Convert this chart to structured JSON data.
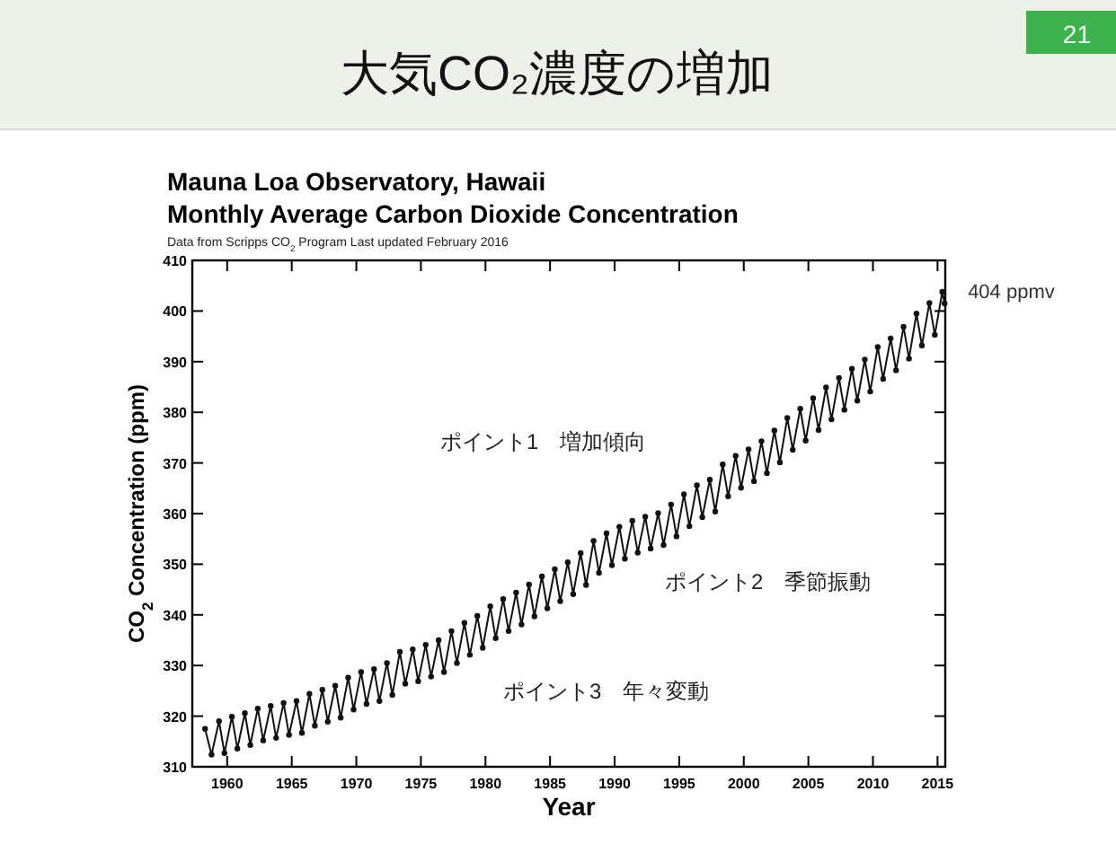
{
  "chart_data": {
    "type": "line",
    "title": "大気CO₂濃度の増加",
    "subtitle": "Mauna Loa Observatory, Hawaii\nMonthly Average Carbon Dioxide Concentration",
    "xlabel": "Year",
    "ylabel": "CO$_{2}$ Concentration (ppm)",
    "xlim": [
      1957.3,
      2015.6
    ],
    "xticks": [
      1960,
      1965,
      1970,
      1975,
      1980,
      1985,
      1990,
      1995,
      2000,
      2005,
      2010,
      2015
    ],
    "ylim": [
      310,
      410
    ],
    "yticks": [
      310,
      320,
      330,
      340,
      350,
      360,
      370,
      380,
      390,
      400,
      410
    ],
    "marker": "circle",
    "line_style": "solid",
    "annotations": [
      "Data from Scripps CO$_{2}$ Program    Last updated February 2016",
      "ポイント1　増加傾向",
      "ポイント2　季節振動",
      "ポイント3　年々変動",
      {
        "text": "404 ppmv",
        "x": 2015.4,
        "y": 404
      },
      "21"
    ],
    "series": [
      {
        "color": "#111111",
        "x": [
          1958.29,
          1958.79,
          1959.37,
          1959.79,
          1960.37,
          1960.79,
          1961.37,
          1961.79,
          1962.37,
          1962.79,
          1963.37,
          1963.79,
          1964.37,
          1964.79,
          1965.37,
          1965.79,
          1966.37,
          1966.79,
          1967.37,
          1967.79,
          1968.37,
          1968.79,
          1969.37,
          1969.79,
          1970.37,
          1970.79,
          1971.37,
          1971.79,
          1972.37,
          1972.79,
          1973.37,
          1973.79,
          1974.37,
          1974.79,
          1975.37,
          1975.79,
          1976.37,
          1976.79,
          1977.37,
          1977.79,
          1978.37,
          1978.79,
          1979.37,
          1979.79,
          1980.37,
          1980.79,
          1981.37,
          1981.79,
          1982.37,
          1982.79,
          1983.37,
          1983.79,
          1984.37,
          1984.79,
          1985.37,
          1985.79,
          1986.37,
          1986.79,
          1987.37,
          1987.79,
          1988.37,
          1988.79,
          1989.37,
          1989.79,
          1990.37,
          1990.79,
          1991.37,
          1991.79,
          1992.37,
          1992.79,
          1993.37,
          1993.79,
          1994.37,
          1994.79,
          1995.37,
          1995.79,
          1996.37,
          1996.79,
          1997.37,
          1997.79,
          1998.37,
          1998.79,
          1999.37,
          1999.79,
          2000.37,
          2000.79,
          2001.37,
          2001.79,
          2002.37,
          2002.79,
          2003.37,
          2003.79,
          2004.37,
          2004.79,
          2005.37,
          2005.79,
          2006.37,
          2006.79,
          2007.37,
          2007.79,
          2008.37,
          2008.79,
          2009.37,
          2009.79,
          2010.37,
          2010.79,
          2011.37,
          2011.79,
          2012.37,
          2012.79,
          2013.37,
          2013.79,
          2014.37,
          2014.79,
          2015.37,
          2015.55
        ],
        "values": [
          317.5,
          312.4,
          319.0,
          312.7,
          319.9,
          313.6,
          320.6,
          314.3,
          321.5,
          315.2,
          322.0,
          315.7,
          322.6,
          316.3,
          323.0,
          316.7,
          324.4,
          318.1,
          325.2,
          318.9,
          326.0,
          319.7,
          327.6,
          321.3,
          328.7,
          322.4,
          329.3,
          323.0,
          330.5,
          324.2,
          332.7,
          326.4,
          333.2,
          326.9,
          334.1,
          327.8,
          335.0,
          328.7,
          336.8,
          330.5,
          338.4,
          332.1,
          339.8,
          333.5,
          341.7,
          335.4,
          343.1,
          336.8,
          344.4,
          338.1,
          346.0,
          339.7,
          347.6,
          341.3,
          349.0,
          342.7,
          350.4,
          344.1,
          352.2,
          345.9,
          354.6,
          348.3,
          356.1,
          349.8,
          357.4,
          351.1,
          358.6,
          352.3,
          359.4,
          353.1,
          360.1,
          353.8,
          361.8,
          355.5,
          363.8,
          357.5,
          365.6,
          359.3,
          366.7,
          360.4,
          369.7,
          363.4,
          371.4,
          365.1,
          372.7,
          366.4,
          374.3,
          368.0,
          376.4,
          370.1,
          378.9,
          372.6,
          380.7,
          374.4,
          382.8,
          376.5,
          384.9,
          378.6,
          386.8,
          380.5,
          388.6,
          382.3,
          390.4,
          384.1,
          392.9,
          386.6,
          394.6,
          388.3,
          396.9,
          390.6,
          399.5,
          393.2,
          401.6,
          395.3,
          403.8,
          401.5
        ]
      }
    ]
  }
}
